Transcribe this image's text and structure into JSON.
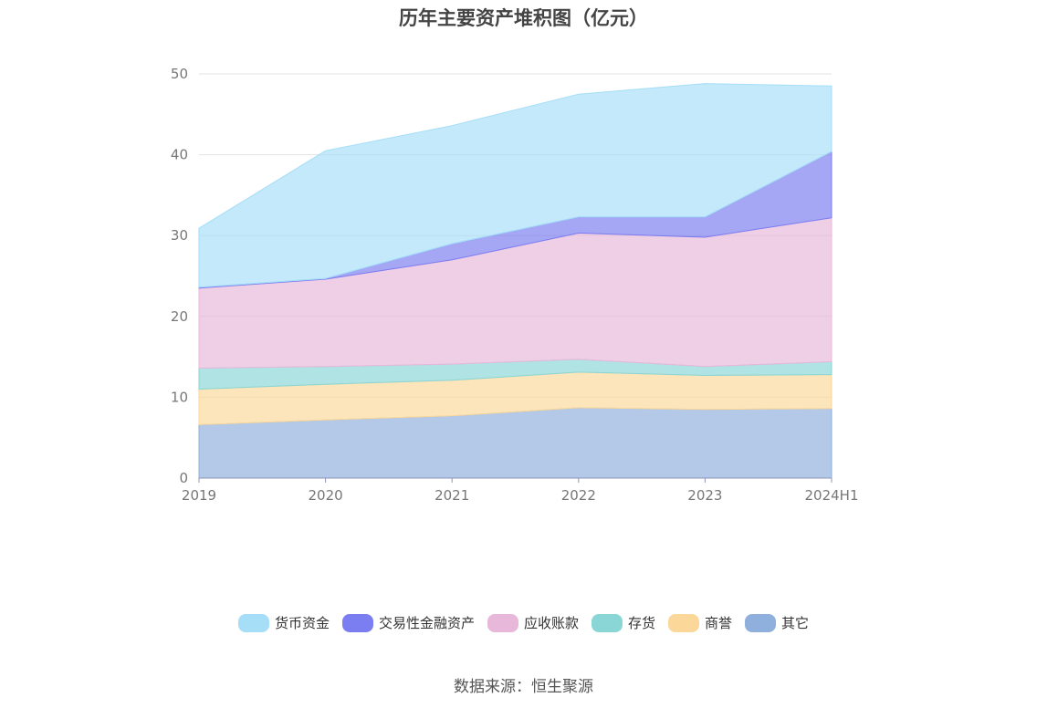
{
  "chart_data": {
    "type": "area",
    "stacked": true,
    "title": "历年主要资产堆积图（亿元）",
    "categories": [
      "2019",
      "2020",
      "2021",
      "2022",
      "2023",
      "2024H1"
    ],
    "ylim": [
      0,
      50
    ],
    "yticks": [
      "0",
      "10",
      "20",
      "30",
      "40",
      "50"
    ],
    "grid": true,
    "legend_position": "bottom",
    "series": [
      {
        "name": "其它",
        "color": "#8fb0dc",
        "values": [
          6.6,
          7.2,
          7.7,
          8.7,
          8.5,
          8.6
        ]
      },
      {
        "name": "商誉",
        "color": "#fbd89a",
        "values": [
          4.4,
          4.4,
          4.4,
          4.4,
          4.2,
          4.2
        ]
      },
      {
        "name": "存货",
        "color": "#8ad6d6",
        "values": [
          2.6,
          2.2,
          2.0,
          1.6,
          1.1,
          1.6
        ]
      },
      {
        "name": "应收账款",
        "color": "#e8b8da",
        "values": [
          9.9,
          10.8,
          12.9,
          15.6,
          16.0,
          17.8
        ]
      },
      {
        "name": "交易性金融资产",
        "color": "#7b7ef0",
        "values": [
          0.1,
          0.1,
          2.0,
          2.0,
          2.5,
          8.2
        ]
      },
      {
        "name": "货币资金",
        "color": "#a6def8",
        "values": [
          7.3,
          15.8,
          14.6,
          15.2,
          16.5,
          8.1
        ]
      }
    ]
  },
  "source": "数据来源：恒生聚源"
}
